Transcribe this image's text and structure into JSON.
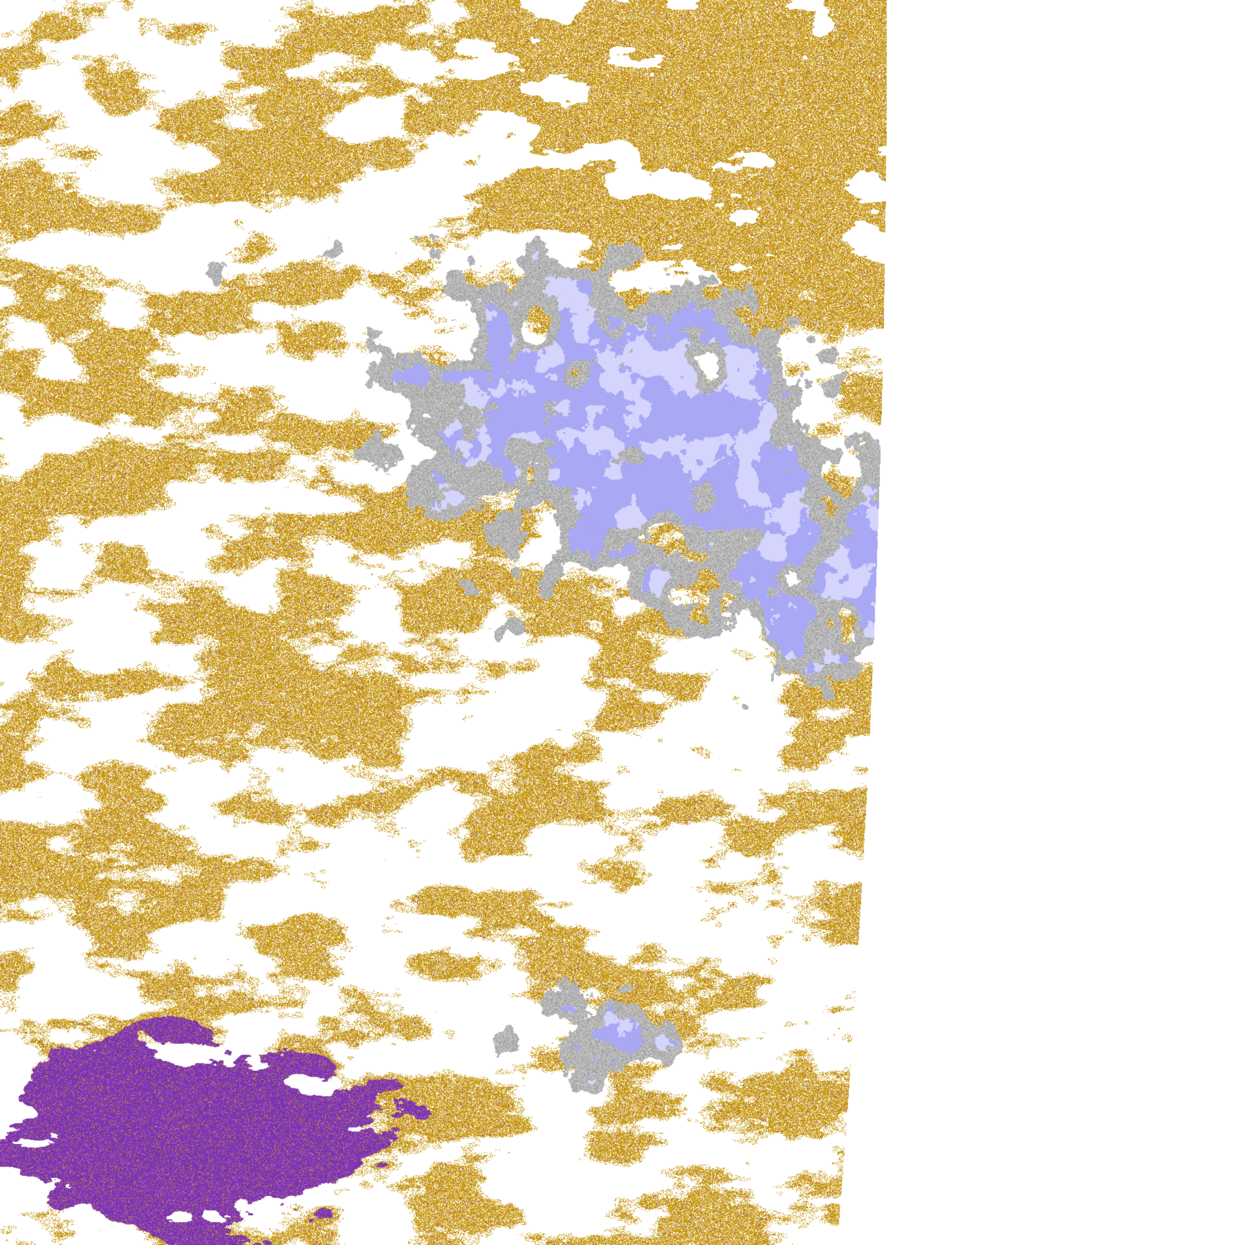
{
  "image": {
    "kind": "satellite-cloud-classification-swath",
    "palette": {
      "clear": "#ffffff",
      "gold": "#c99a14",
      "purple": "#7a35b0",
      "magenta": "#d060e0",
      "gray": "#a2a2a2",
      "light_gray": "#c8c8c8",
      "lavender": "#a8a8f4",
      "pale_lavender": "#d4d4fc"
    }
  }
}
